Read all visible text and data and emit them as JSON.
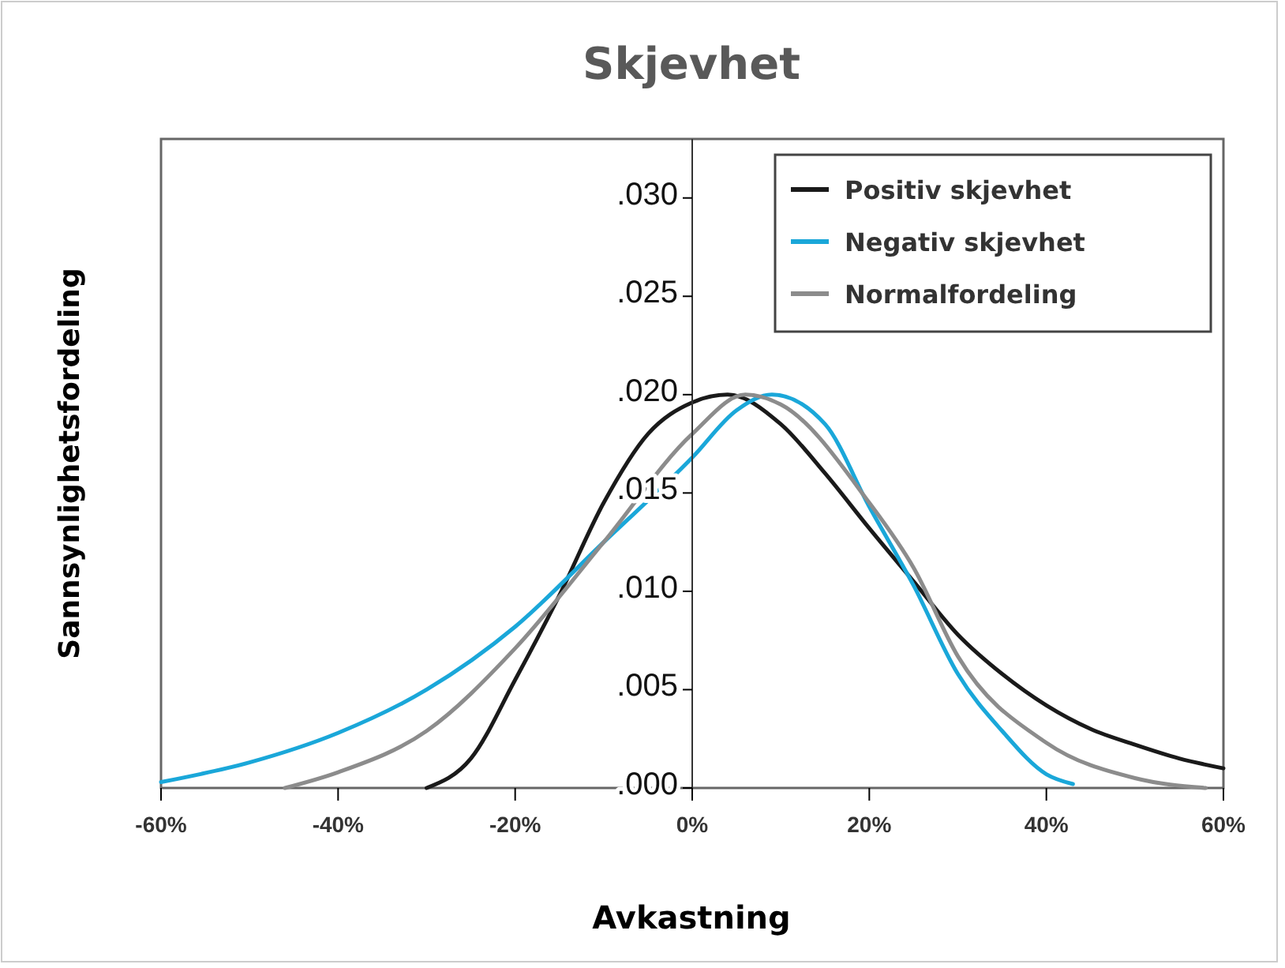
{
  "chart_data": {
    "type": "line",
    "title": "Skjevhet",
    "xlabel": "Avkastning",
    "ylabel": "Sannsynlighetsfordeling",
    "xlim": [
      -60,
      60
    ],
    "xticks": [
      {
        "value": -60,
        "label": "-60%"
      },
      {
        "value": -40,
        "label": "-40%"
      },
      {
        "value": -20,
        "label": "-20%"
      },
      {
        "value": 0,
        "label": "0%"
      },
      {
        "value": 20,
        "label": "20%"
      },
      {
        "value": 40,
        "label": "40%"
      },
      {
        "value": 60,
        "label": "60%"
      }
    ],
    "ylim": [
      0,
      0.033
    ],
    "yticks": [
      {
        "value": 0,
        "label": ".000"
      },
      {
        "value": 0.005,
        "label": ".005"
      },
      {
        "value": 0.01,
        "label": ".010"
      },
      {
        "value": 0.015,
        "label": ".015"
      },
      {
        "value": 0.02,
        "label": ".020"
      },
      {
        "value": 0.025,
        "label": ".025"
      },
      {
        "value": 0.03,
        "label": ".030"
      }
    ],
    "grid": false,
    "legend": "top right",
    "marker": "none",
    "line_style": "solid",
    "series": [
      {
        "name": "Positiv skjevhet",
        "color": "#1a1a1a",
        "x": [
          -30,
          -25,
          -20,
          -15,
          -10,
          -5,
          0,
          4,
          10,
          15,
          20,
          25,
          30,
          35,
          40,
          45,
          50,
          55,
          60
        ],
        "values": [
          0,
          0.0015,
          0.0055,
          0.0098,
          0.0145,
          0.018,
          0.0196,
          0.02,
          0.0185,
          0.016,
          0.0132,
          0.0105,
          0.0078,
          0.0058,
          0.0042,
          0.003,
          0.0022,
          0.0015,
          0.001
        ]
      },
      {
        "name": "Negativ skjevhet",
        "color": "#1aa7d9",
        "x": [
          -60,
          -50,
          -40,
          -30,
          -20,
          -10,
          0,
          5,
          9,
          15,
          20,
          25,
          30,
          35,
          40,
          43
        ],
        "values": [
          0.0003,
          0.0013,
          0.0028,
          0.005,
          0.0082,
          0.0125,
          0.0168,
          0.0192,
          0.02,
          0.0185,
          0.0143,
          0.0103,
          0.0058,
          0.0029,
          0.0007,
          0.0002
        ]
      },
      {
        "name": "Normalfordeling",
        "color": "#8c8c8c",
        "x": [
          -46,
          -40,
          -30,
          -20,
          -10,
          0,
          6,
          10,
          20,
          25,
          30,
          40,
          50,
          58
        ],
        "values": [
          0,
          0.0008,
          0.0029,
          0.0071,
          0.0125,
          0.018,
          0.02,
          0.0195,
          0.0145,
          0.0112,
          0.0067,
          0.0023,
          0.0005,
          0
        ]
      }
    ]
  }
}
